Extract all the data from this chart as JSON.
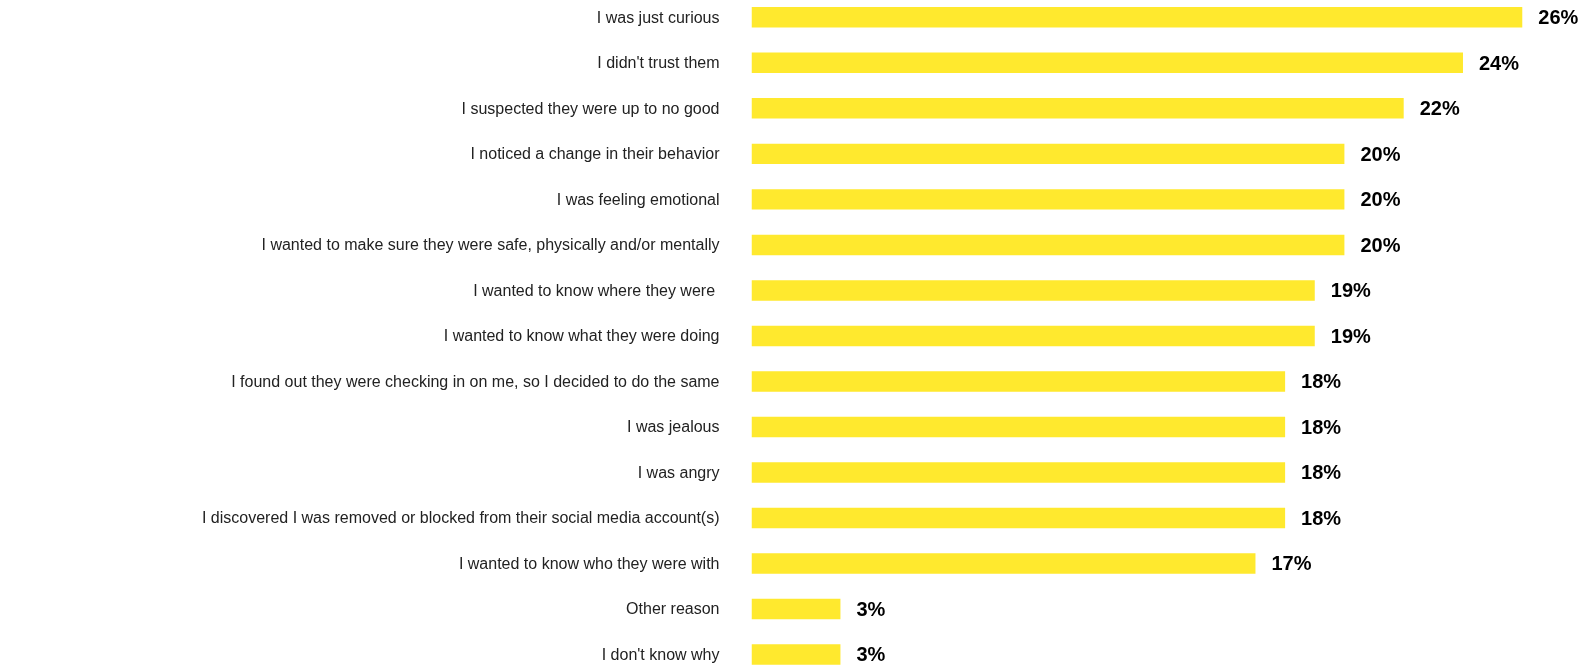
{
  "chart_data": {
    "type": "bar",
    "orientation": "horizontal",
    "color": "#ffe92e",
    "categories": [
      "I was just curious",
      "I didn't trust them",
      "I suspected they were up to no good",
      "I noticed a change in their behavior",
      "I was feeling emotional",
      "I wanted to make sure they were safe, physically and/or mentally",
      "I  wanted to know where they were",
      "I wanted to know what they were doing",
      "I found out they were checking in on me, so I decided to do the same",
      "I was jealous",
      "I was angry",
      "I discovered I was removed or blocked from their social media account(s)",
      "I wanted to know who they were with",
      "Other reason",
      "I don't know why"
    ],
    "values": [
      26,
      24,
      22,
      20,
      20,
      20,
      19,
      19,
      18,
      18,
      18,
      18,
      17,
      3,
      3
    ],
    "value_labels": [
      "26%",
      "24%",
      "22%",
      "20%",
      "20%",
      "20%",
      "19%",
      "19%",
      "18%",
      "18%",
      "18%",
      "18%",
      "17%",
      "3%",
      "3%"
    ]
  }
}
